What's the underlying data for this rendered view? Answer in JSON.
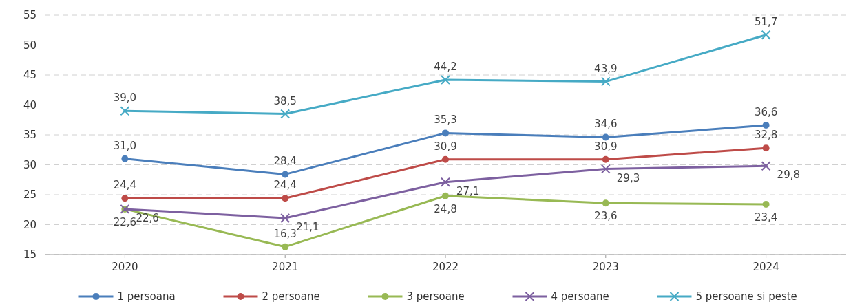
{
  "chart_data": {
    "type": "line",
    "categories": [
      "2020",
      "2021",
      "2022",
      "2023",
      "2024"
    ],
    "series": [
      {
        "name": "1 persoana",
        "color": "#4a7ebb",
        "marker": "circle",
        "values": [
          31.0,
          28.4,
          35.3,
          34.6,
          36.6
        ],
        "value_labels": [
          "31,0",
          "28,4",
          "35,3",
          "34,6",
          "36,6"
        ]
      },
      {
        "name": "2 persoane",
        "color": "#be4b48",
        "marker": "circle",
        "values": [
          24.4,
          24.4,
          30.9,
          30.9,
          32.8
        ],
        "value_labels": [
          "24,4",
          "24,4",
          "30,9",
          "30,9",
          "32,8"
        ]
      },
      {
        "name": "3 persoane",
        "color": "#98b954",
        "marker": "circle",
        "values": [
          22.6,
          16.3,
          24.8,
          23.6,
          23.4
        ],
        "value_labels": [
          "22,6",
          "16,3",
          "24,8",
          "23,6",
          "23,4"
        ]
      },
      {
        "name": "4 persoane",
        "color": "#7d60a0",
        "marker": "cross",
        "values": [
          22.6,
          21.1,
          27.1,
          29.3,
          29.8
        ],
        "value_labels": [
          "22,6",
          "21,1",
          "27,1",
          "29,3",
          "29,8"
        ]
      },
      {
        "name": "5 persoane si peste",
        "color": "#46aac5",
        "marker": "cross",
        "values": [
          39.0,
          38.5,
          44.2,
          43.9,
          51.7
        ],
        "value_labels": [
          "39,0",
          "38,5",
          "44,2",
          "43,9",
          "51,7"
        ]
      }
    ],
    "ylim": [
      15,
      55
    ],
    "yticks": [
      15,
      20,
      25,
      30,
      35,
      40,
      45,
      50,
      55
    ],
    "grid": "y",
    "legend": "bottom",
    "line_style": "solid"
  }
}
